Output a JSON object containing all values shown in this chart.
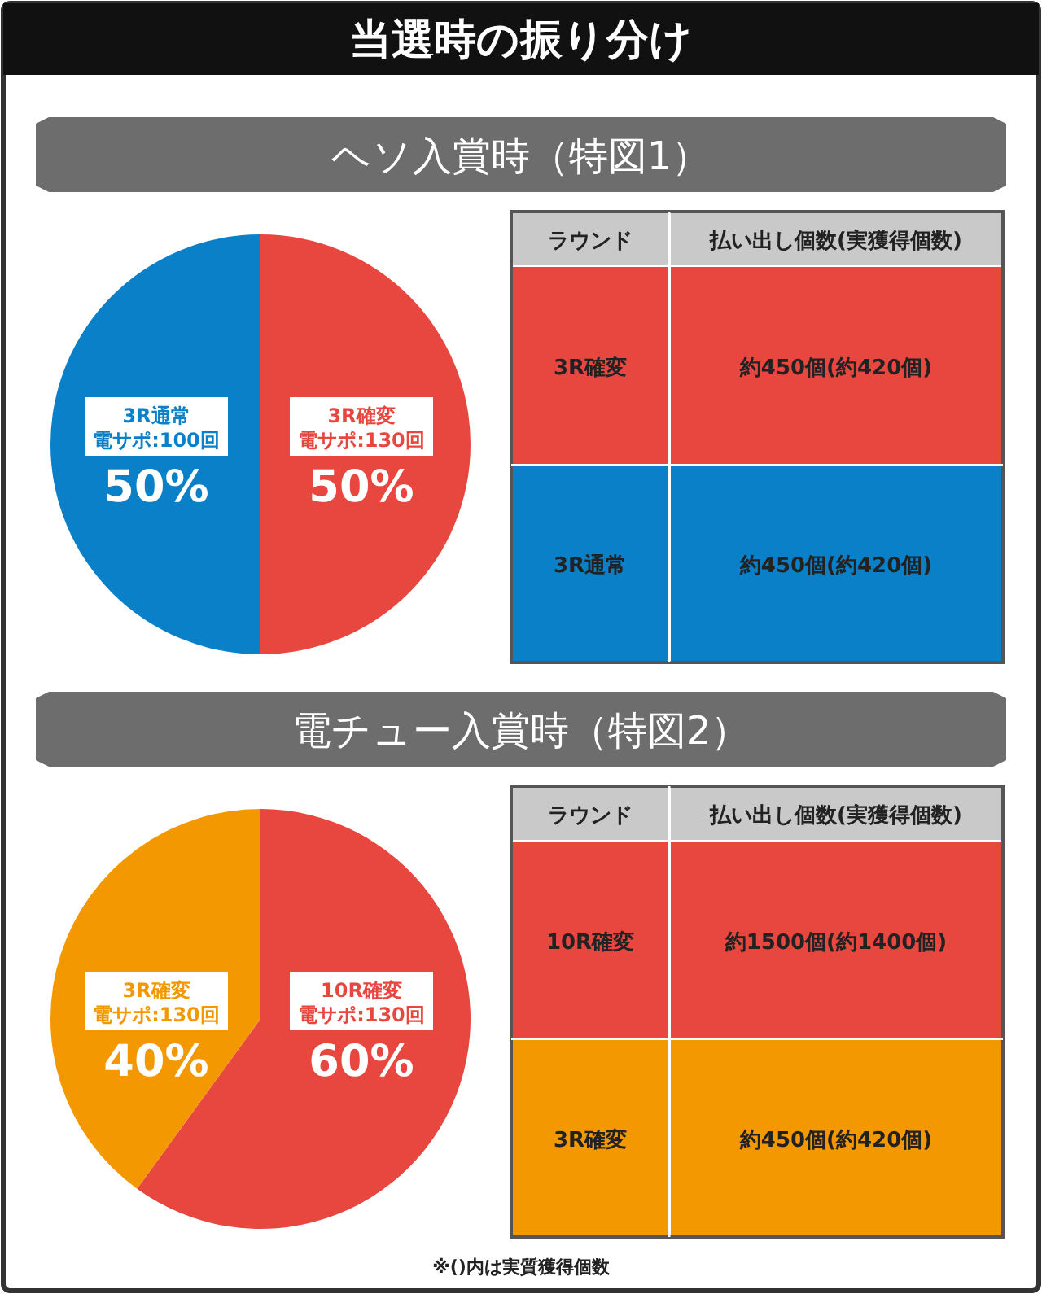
{
  "chart_data": [
    {
      "type": "pie",
      "title": "当選時の振り分け",
      "subtitle": "ヘソ入賞時（特図1）",
      "categories": [
        "3R確変",
        "3R通常"
      ],
      "annotations": [
        "電サポ:130回",
        "電サポ:100回"
      ],
      "values": [
        50,
        50
      ],
      "colors": [
        "#e8473f",
        "#0a80c8"
      ],
      "value_labels": [
        "50%",
        "50%"
      ]
    },
    {
      "type": "other",
      "categories": [
        "ラウンド",
        "払い出し個数(実獲得個数)"
      ],
      "cell_labels": [
        [
          "3R確変",
          "約450個(約420個)"
        ],
        [
          "3R通常",
          "約450個(約420個)"
        ]
      ],
      "colors": [
        "#c9c9c9",
        "#c9c9c9",
        "#e8473f",
        "#e8473f",
        "#0a80c8",
        "#0a80c8"
      ]
    },
    {
      "type": "pie",
      "subtitle": "電チュー入賞時（特図2）",
      "categories": [
        "10R確変",
        "3R確変"
      ],
      "annotations": [
        "電サポ:130回",
        "電サポ:130回"
      ],
      "values": [
        60,
        40
      ],
      "colors": [
        "#e8473f",
        "#f39800"
      ],
      "value_labels": [
        "60%",
        "40%"
      ]
    },
    {
      "type": "other",
      "categories": [
        "ラウンド",
        "払い出し個数(実獲得個数)"
      ],
      "cell_labels": [
        [
          "10R確変",
          "約1500個(約1400個)"
        ],
        [
          "3R確変",
          "約450個(約420個)"
        ]
      ],
      "colors": [
        "#c9c9c9",
        "#c9c9c9",
        "#e8473f",
        "#e8473f",
        "#f39800",
        "#f39800"
      ],
      "annotations": [
        "※()内は実質獲得個数"
      ]
    }
  ]
}
